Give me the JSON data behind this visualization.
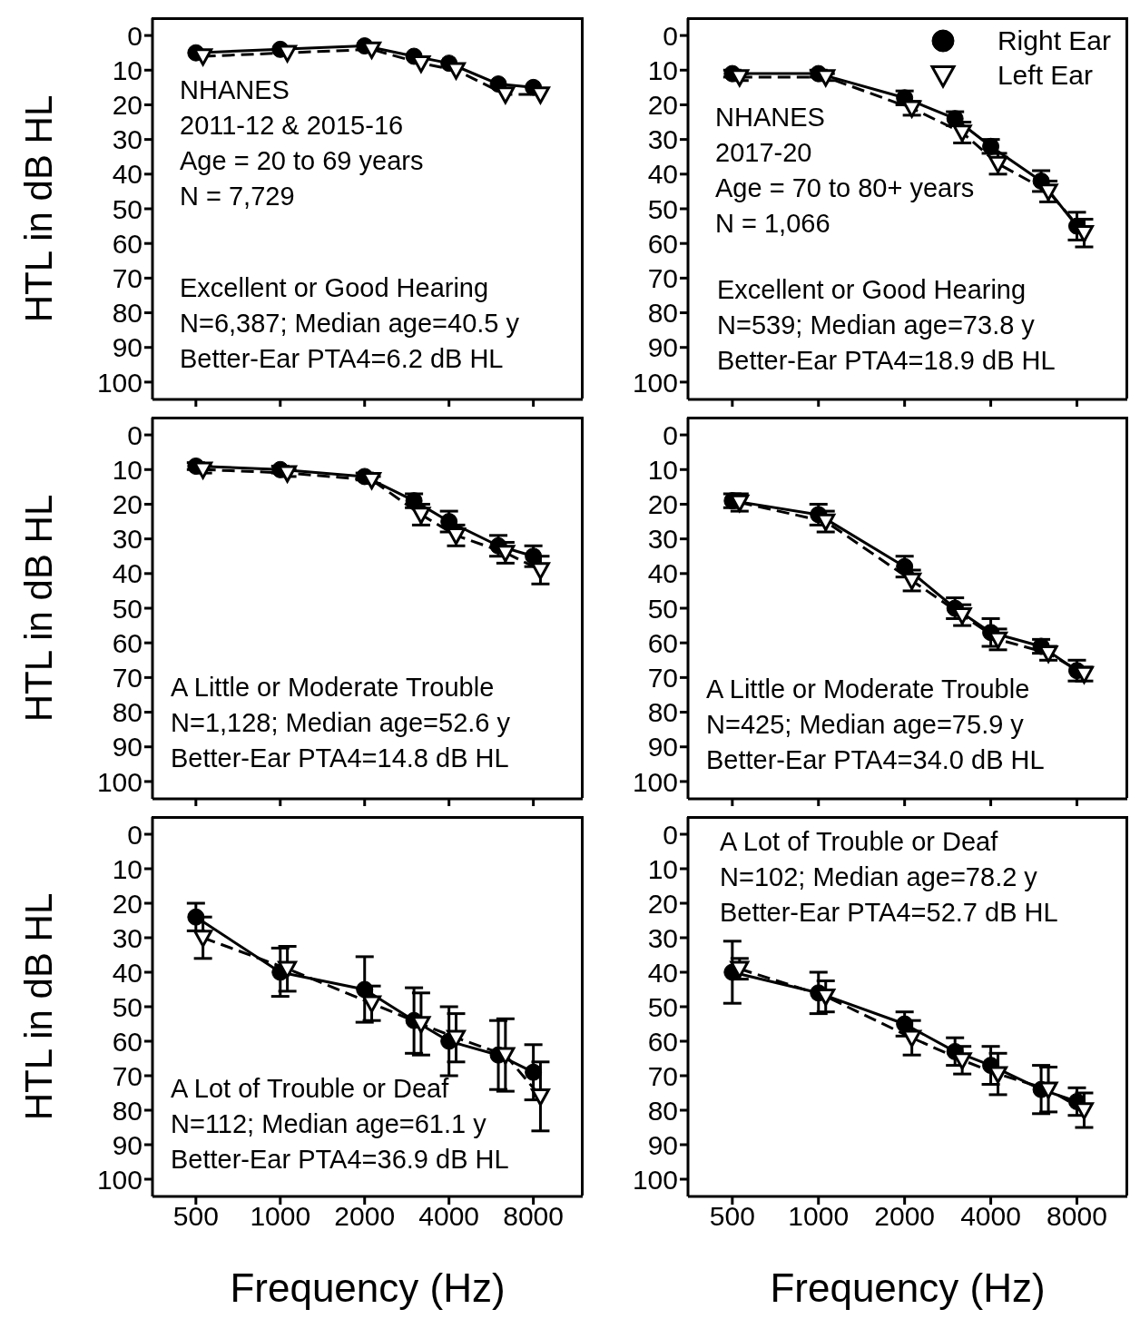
{
  "chart_data": [
    {
      "type": "line",
      "log": "x",
      "ylabel": "HTL in dB HL",
      "x": [
        500,
        1000,
        2000,
        3000,
        4000,
        6000,
        8000
      ],
      "xlim": [
        350,
        12000
      ],
      "xticks": [
        500,
        1000,
        2000,
        4000,
        8000
      ],
      "ylim": [
        105,
        -5
      ],
      "yticks": [
        0,
        10,
        20,
        30,
        40,
        50,
        60,
        70,
        80,
        90,
        100
      ],
      "tick_labels": "y",
      "legend": false,
      "grid": false,
      "annotations": [
        "NHANES\n2011-12 & 2015-16\nAge = 20 to 69 years\nN = 7,729",
        "Excellent or Good Hearing\nN=6,387; Median age=40.5 y\nBetter-Ear PTA4=6.2 dB HL"
      ],
      "series": [
        {
          "color": "#000000",
          "marker": "circle",
          "line_style": "solid",
          "values": [
            5,
            4,
            3,
            6,
            8,
            14,
            15
          ]
        },
        {
          "color": "#000000",
          "marker": "triangle",
          "line_style": "dashed",
          "x": [
            530,
            1060,
            2120,
            3180,
            4240,
            6360,
            8480
          ],
          "values": [
            6,
            5,
            4,
            8,
            10,
            17,
            17
          ]
        }
      ]
    },
    {
      "type": "line",
      "log": "x",
      "x": [
        500,
        1000,
        2000,
        3000,
        4000,
        6000,
        8000
      ],
      "xlim": [
        350,
        12000
      ],
      "xticks": [
        500,
        1000,
        2000,
        4000,
        8000
      ],
      "ylim": [
        105,
        -5
      ],
      "yticks": [
        0,
        10,
        20,
        30,
        40,
        50,
        60,
        70,
        80,
        90,
        100
      ],
      "tick_labels": "y",
      "legend": "top right",
      "grid": false,
      "annotations": [
        "NHANES\n2017-20\nAge = 70 to 80+ years\nN = 1,066",
        "Excellent or Good Hearing\nN=539; Median age=73.8 y\nBetter-Ear PTA4=18.9 dB HL"
      ],
      "series": [
        {
          "name": "Right Ear",
          "color": "#000000",
          "marker": "circle",
          "line_style": "solid",
          "values": [
            11,
            11,
            18,
            24,
            32,
            42,
            55
          ],
          "errors": [
            1,
            1,
            2,
            2,
            2,
            3,
            4
          ]
        },
        {
          "name": "Left Ear",
          "color": "#000000",
          "marker": "triangle",
          "line_style": "dashed",
          "x": [
            530,
            1060,
            2120,
            3180,
            4240,
            6360,
            8480
          ],
          "values": [
            12,
            12,
            21,
            28,
            37,
            45,
            57
          ],
          "errors": [
            1,
            1,
            2,
            3,
            3,
            3,
            4
          ]
        }
      ]
    },
    {
      "type": "line",
      "log": "x",
      "ylabel": "HTL in dB HL",
      "x": [
        500,
        1000,
        2000,
        3000,
        4000,
        6000,
        8000
      ],
      "xlim": [
        350,
        12000
      ],
      "xticks": [
        500,
        1000,
        2000,
        4000,
        8000
      ],
      "ylim": [
        105,
        -5
      ],
      "yticks": [
        0,
        10,
        20,
        30,
        40,
        50,
        60,
        70,
        80,
        90,
        100
      ],
      "tick_labels": "y",
      "legend": false,
      "grid": false,
      "annotations": [
        "A Little or Moderate Trouble\nN=1,128; Median age=52.6 y\nBetter-Ear PTA4=14.8 dB HL"
      ],
      "series": [
        {
          "color": "#000000",
          "marker": "circle",
          "line_style": "solid",
          "values": [
            9,
            10,
            12,
            19,
            25,
            32,
            35
          ],
          "errors": [
            1,
            1,
            1,
            2,
            3,
            3,
            3
          ]
        },
        {
          "color": "#000000",
          "marker": "triangle",
          "line_style": "dashed",
          "x": [
            530,
            1060,
            2120,
            3180,
            4240,
            6360,
            8480
          ],
          "values": [
            10,
            11,
            13,
            23,
            29,
            34,
            39
          ],
          "errors": [
            1,
            1,
            1,
            3,
            3,
            3,
            4
          ]
        }
      ]
    },
    {
      "type": "line",
      "log": "x",
      "x": [
        500,
        1000,
        2000,
        3000,
        4000,
        6000,
        8000
      ],
      "xlim": [
        350,
        12000
      ],
      "xticks": [
        500,
        1000,
        2000,
        4000,
        8000
      ],
      "ylim": [
        105,
        -5
      ],
      "yticks": [
        0,
        10,
        20,
        30,
        40,
        50,
        60,
        70,
        80,
        90,
        100
      ],
      "tick_labels": "y",
      "legend": false,
      "grid": false,
      "annotations": [
        "A Little or Moderate Trouble\nN=425; Median age=75.9 y\nBetter-Ear PTA4=34.0 dB HL"
      ],
      "series": [
        {
          "color": "#000000",
          "marker": "circle",
          "line_style": "solid",
          "values": [
            19,
            23,
            38,
            50,
            57,
            61,
            68
          ],
          "errors": [
            2,
            3,
            3,
            3,
            4,
            2,
            3
          ]
        },
        {
          "color": "#000000",
          "marker": "triangle",
          "line_style": "dashed",
          "x": [
            530,
            1060,
            2120,
            3180,
            4240,
            6360,
            8480
          ],
          "values": [
            19.5,
            25,
            42,
            52,
            59,
            63,
            69
          ],
          "errors": [
            2.5,
            3,
            3,
            3,
            3,
            2,
            2
          ]
        }
      ]
    },
    {
      "type": "line",
      "log": "x",
      "ylabel": "HTL in dB HL",
      "xlabel": "Frequency (Hz)",
      "x": [
        500,
        1000,
        2000,
        3000,
        4000,
        6000,
        8000
      ],
      "xlim": [
        350,
        12000
      ],
      "xticks": [
        500,
        1000,
        2000,
        4000,
        8000
      ],
      "ylim": [
        105,
        -5
      ],
      "yticks": [
        0,
        10,
        20,
        30,
        40,
        50,
        60,
        70,
        80,
        90,
        100
      ],
      "legend": false,
      "grid": false,
      "annotations": [
        "A Lot of Trouble or Deaf\nN=112; Median age=61.1 y\nBetter-Ear PTA4=36.9 dB HL"
      ],
      "series": [
        {
          "color": "#000000",
          "marker": "circle",
          "line_style": "solid",
          "values": [
            24,
            40,
            45,
            54,
            60,
            64,
            69
          ],
          "errors": [
            4,
            7,
            9.5,
            9.5,
            10,
            10,
            8
          ]
        },
        {
          "color": "#000000",
          "marker": "triangle",
          "line_style": "dashed",
          "x": [
            530,
            1060,
            2120,
            3180,
            4240,
            6360,
            8480
          ],
          "values": [
            30,
            39,
            49,
            55,
            59,
            64,
            76
          ],
          "errors": [
            6,
            6.5,
            5,
            9,
            7,
            10.5,
            10
          ]
        }
      ]
    },
    {
      "type": "line",
      "log": "x",
      "xlabel": "Frequency (Hz)",
      "x": [
        500,
        1000,
        2000,
        3000,
        4000,
        6000,
        8000
      ],
      "xlim": [
        350,
        12000
      ],
      "xticks": [
        500,
        1000,
        2000,
        4000,
        8000
      ],
      "ylim": [
        105,
        -5
      ],
      "yticks": [
        0,
        10,
        20,
        30,
        40,
        50,
        60,
        70,
        80,
        90,
        100
      ],
      "legend": false,
      "grid": false,
      "annotations": [
        "A Lot of Trouble or Deaf\nN=102; Median age=78.2 y\nBetter-Ear PTA4=52.7 dB HL"
      ],
      "series": [
        {
          "color": "#000000",
          "marker": "circle",
          "line_style": "solid",
          "values": [
            40,
            46,
            55,
            63,
            67,
            74,
            77.5
          ],
          "errors": [
            9,
            6,
            3.5,
            4,
            5.5,
            7,
            4
          ]
        },
        {
          "color": "#000000",
          "marker": "triangle",
          "line_style": "dashed",
          "x": [
            530,
            1060,
            2120,
            3180,
            4240,
            6360,
            8480
          ],
          "values": [
            39,
            47,
            59,
            65.5,
            69.5,
            74,
            80
          ],
          "errors": [
            3,
            4.5,
            5,
            4,
            6,
            6.5,
            5
          ]
        }
      ]
    }
  ]
}
